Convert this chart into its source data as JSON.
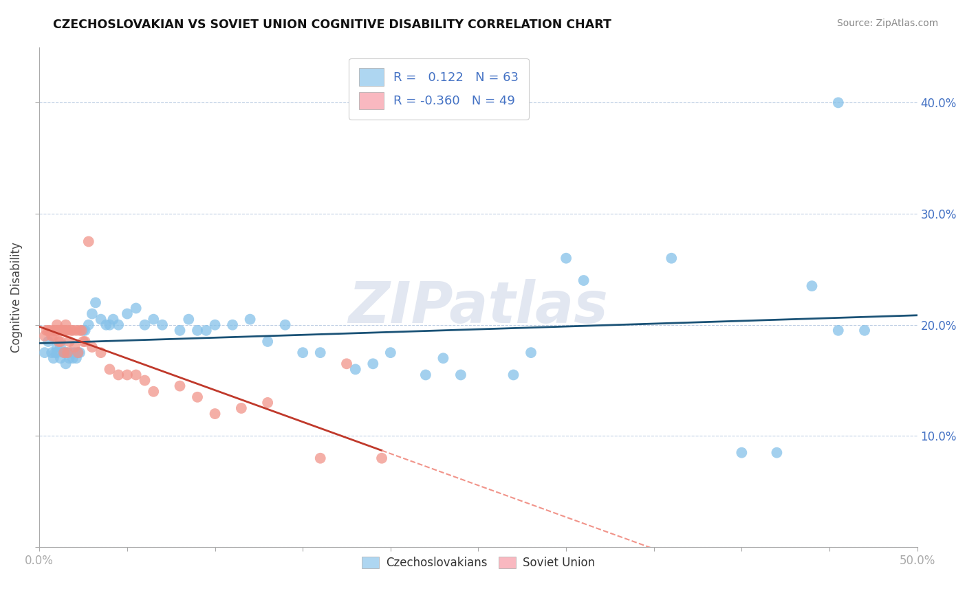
{
  "title": "CZECHOSLOVAKIAN VS SOVIET UNION COGNITIVE DISABILITY CORRELATION CHART",
  "source": "Source: ZipAtlas.com",
  "ylabel": "Cognitive Disability",
  "xlim": [
    0.0,
    0.5
  ],
  "ylim": [
    0.0,
    0.45
  ],
  "x_ticks": [
    0.0,
    0.05,
    0.1,
    0.15,
    0.2,
    0.25,
    0.3,
    0.35,
    0.4,
    0.45,
    0.5
  ],
  "x_tick_labels": [
    "0.0%",
    "",
    "",
    "",
    "",
    "",
    "",
    "",
    "",
    "",
    "50.0%"
  ],
  "y_ticks": [
    0.0,
    0.1,
    0.2,
    0.3,
    0.4
  ],
  "y_tick_labels_right": [
    "",
    "10.0%",
    "20.0%",
    "30.0%",
    "40.0%"
  ],
  "r_blue": "0.122",
  "n_blue": 63,
  "r_pink": "-0.360",
  "n_pink": 49,
  "blue_scatter_color": "#85c1e9",
  "pink_scatter_color": "#f1948a",
  "blue_line_color": "#1a5276",
  "pink_line_color": "#c0392b",
  "pink_line_dashed_color": "#f1948a",
  "watermark": "ZIPatlas",
  "legend_labels": [
    "Czechoslovakians",
    "Soviet Union"
  ],
  "blue_patch_color": "#aed6f1",
  "pink_patch_color": "#f9b8c0",
  "blue_scatter_x": [
    0.003,
    0.005,
    0.007,
    0.008,
    0.009,
    0.01,
    0.01,
    0.012,
    0.012,
    0.014,
    0.015,
    0.015,
    0.016,
    0.017,
    0.018,
    0.019,
    0.02,
    0.021,
    0.022,
    0.023,
    0.025,
    0.026,
    0.028,
    0.03,
    0.032,
    0.035,
    0.038,
    0.04,
    0.042,
    0.045,
    0.05,
    0.055,
    0.06,
    0.065,
    0.07,
    0.08,
    0.085,
    0.09,
    0.095,
    0.1,
    0.11,
    0.12,
    0.13,
    0.14,
    0.15,
    0.16,
    0.18,
    0.19,
    0.2,
    0.22,
    0.23,
    0.24,
    0.27,
    0.28,
    0.3,
    0.31,
    0.36,
    0.4,
    0.42,
    0.44,
    0.455,
    0.455,
    0.47
  ],
  "blue_scatter_y": [
    0.175,
    0.185,
    0.175,
    0.17,
    0.175,
    0.18,
    0.175,
    0.17,
    0.18,
    0.175,
    0.165,
    0.175,
    0.175,
    0.17,
    0.175,
    0.17,
    0.175,
    0.17,
    0.175,
    0.175,
    0.195,
    0.195,
    0.2,
    0.21,
    0.22,
    0.205,
    0.2,
    0.2,
    0.205,
    0.2,
    0.21,
    0.215,
    0.2,
    0.205,
    0.2,
    0.195,
    0.205,
    0.195,
    0.195,
    0.2,
    0.2,
    0.205,
    0.185,
    0.2,
    0.175,
    0.175,
    0.16,
    0.165,
    0.175,
    0.155,
    0.17,
    0.155,
    0.155,
    0.175,
    0.26,
    0.24,
    0.26,
    0.085,
    0.085,
    0.235,
    0.4,
    0.195,
    0.195
  ],
  "pink_scatter_x": [
    0.003,
    0.004,
    0.005,
    0.006,
    0.007,
    0.008,
    0.008,
    0.009,
    0.01,
    0.01,
    0.011,
    0.011,
    0.012,
    0.012,
    0.013,
    0.013,
    0.014,
    0.014,
    0.015,
    0.015,
    0.016,
    0.016,
    0.017,
    0.018,
    0.019,
    0.02,
    0.021,
    0.022,
    0.023,
    0.024,
    0.025,
    0.026,
    0.028,
    0.03,
    0.035,
    0.04,
    0.045,
    0.05,
    0.055,
    0.06,
    0.065,
    0.08,
    0.09,
    0.1,
    0.115,
    0.13,
    0.16,
    0.175,
    0.195
  ],
  "pink_scatter_y": [
    0.19,
    0.195,
    0.195,
    0.195,
    0.19,
    0.19,
    0.195,
    0.195,
    0.195,
    0.2,
    0.195,
    0.185,
    0.195,
    0.185,
    0.195,
    0.195,
    0.195,
    0.175,
    0.195,
    0.2,
    0.175,
    0.195,
    0.185,
    0.195,
    0.195,
    0.18,
    0.195,
    0.175,
    0.195,
    0.195,
    0.185,
    0.185,
    0.275,
    0.18,
    0.175,
    0.16,
    0.155,
    0.155,
    0.155,
    0.15,
    0.14,
    0.145,
    0.135,
    0.12,
    0.125,
    0.13,
    0.08,
    0.165,
    0.08
  ]
}
